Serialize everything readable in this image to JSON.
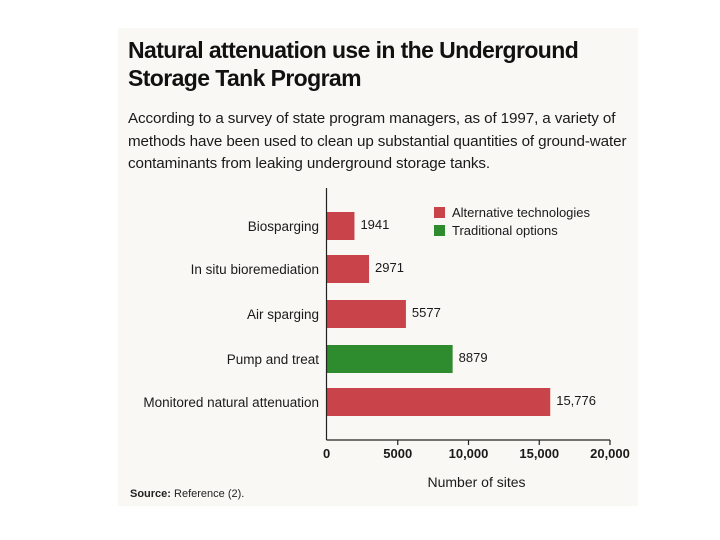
{
  "page": {
    "title": "Natural attenuation use in the Underground Storage Tank Program",
    "subtitle": "According to a survey of state program managers, as of 1997, a variety of methods have been used to clean up substantial quantities of ground-water contaminants from leaking underground storage tanks.",
    "source_label": "Source:",
    "source_text": "Reference (2)."
  },
  "colors": {
    "alternative": "#c8434a",
    "traditional": "#2e8b2e",
    "axis": "#222222"
  },
  "chart_data": {
    "type": "bar",
    "orientation": "horizontal",
    "title": "Natural attenuation use in the Underground Storage Tank Program",
    "xlabel": "Number of sites",
    "ylabel": "",
    "xlim": [
      0,
      20000
    ],
    "ticks": [
      {
        "value": 0,
        "label": "0"
      },
      {
        "value": 5000,
        "label": "5000"
      },
      {
        "value": 10000,
        "label": "10,000"
      },
      {
        "value": 15000,
        "label": "15,000"
      },
      {
        "value": 20000,
        "label": "20,000"
      }
    ],
    "categories": [
      "Biosparging",
      "In situ bioremediation",
      "Air sparging",
      "Pump and treat",
      "Monitored natural attenuation"
    ],
    "values": [
      1941,
      2971,
      5577,
      8879,
      15776
    ],
    "value_labels": [
      "1941",
      "2971",
      "5577",
      "8879",
      "15,776"
    ],
    "groups": [
      "alternative",
      "alternative",
      "alternative",
      "traditional",
      "alternative"
    ],
    "legend": {
      "position": "top-right",
      "entries": [
        {
          "key": "alternative",
          "label": "Alternative technologies"
        },
        {
          "key": "traditional",
          "label": "Traditional options"
        }
      ]
    }
  }
}
